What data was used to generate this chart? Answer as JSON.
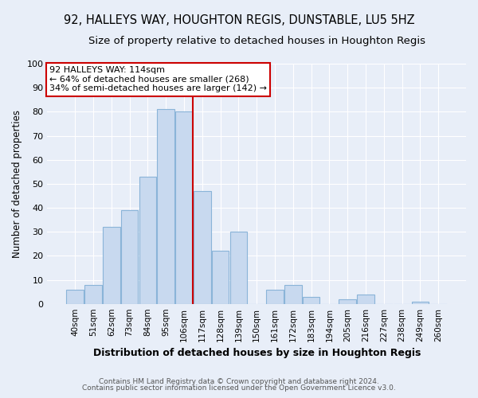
{
  "title": "92, HALLEYS WAY, HOUGHTON REGIS, DUNSTABLE, LU5 5HZ",
  "subtitle": "Size of property relative to detached houses in Houghton Regis",
  "xlabel": "Distribution of detached houses by size in Houghton Regis",
  "ylabel": "Number of detached properties",
  "categories": [
    "40sqm",
    "51sqm",
    "62sqm",
    "73sqm",
    "84sqm",
    "95sqm",
    "106sqm",
    "117sqm",
    "128sqm",
    "139sqm",
    "150sqm",
    "161sqm",
    "172sqm",
    "183sqm",
    "194sqm",
    "205sqm",
    "216sqm",
    "227sqm",
    "238sqm",
    "249sqm",
    "260sqm"
  ],
  "values": [
    6,
    8,
    32,
    39,
    53,
    81,
    80,
    47,
    22,
    30,
    0,
    6,
    8,
    3,
    0,
    2,
    4,
    0,
    0,
    1,
    0
  ],
  "bar_color": "#c8d9ef",
  "bar_edge_color": "#8ab4d8",
  "vline_x_index": 6,
  "vline_color": "#cc0000",
  "annotation_text": "92 HALLEYS WAY: 114sqm\n← 64% of detached houses are smaller (268)\n34% of semi-detached houses are larger (142) →",
  "annotation_box_color": "#ffffff",
  "annotation_box_edge": "#cc0000",
  "ylim": [
    0,
    100
  ],
  "yticks": [
    0,
    10,
    20,
    30,
    40,
    50,
    60,
    70,
    80,
    90,
    100
  ],
  "footer1": "Contains HM Land Registry data © Crown copyright and database right 2024.",
  "footer2": "Contains public sector information licensed under the Open Government Licence v3.0.",
  "bg_color": "#e8eef8",
  "plot_bg_color": "#e8eef8",
  "title_fontsize": 10.5,
  "subtitle_fontsize": 9.5,
  "grid_color": "#ffffff"
}
